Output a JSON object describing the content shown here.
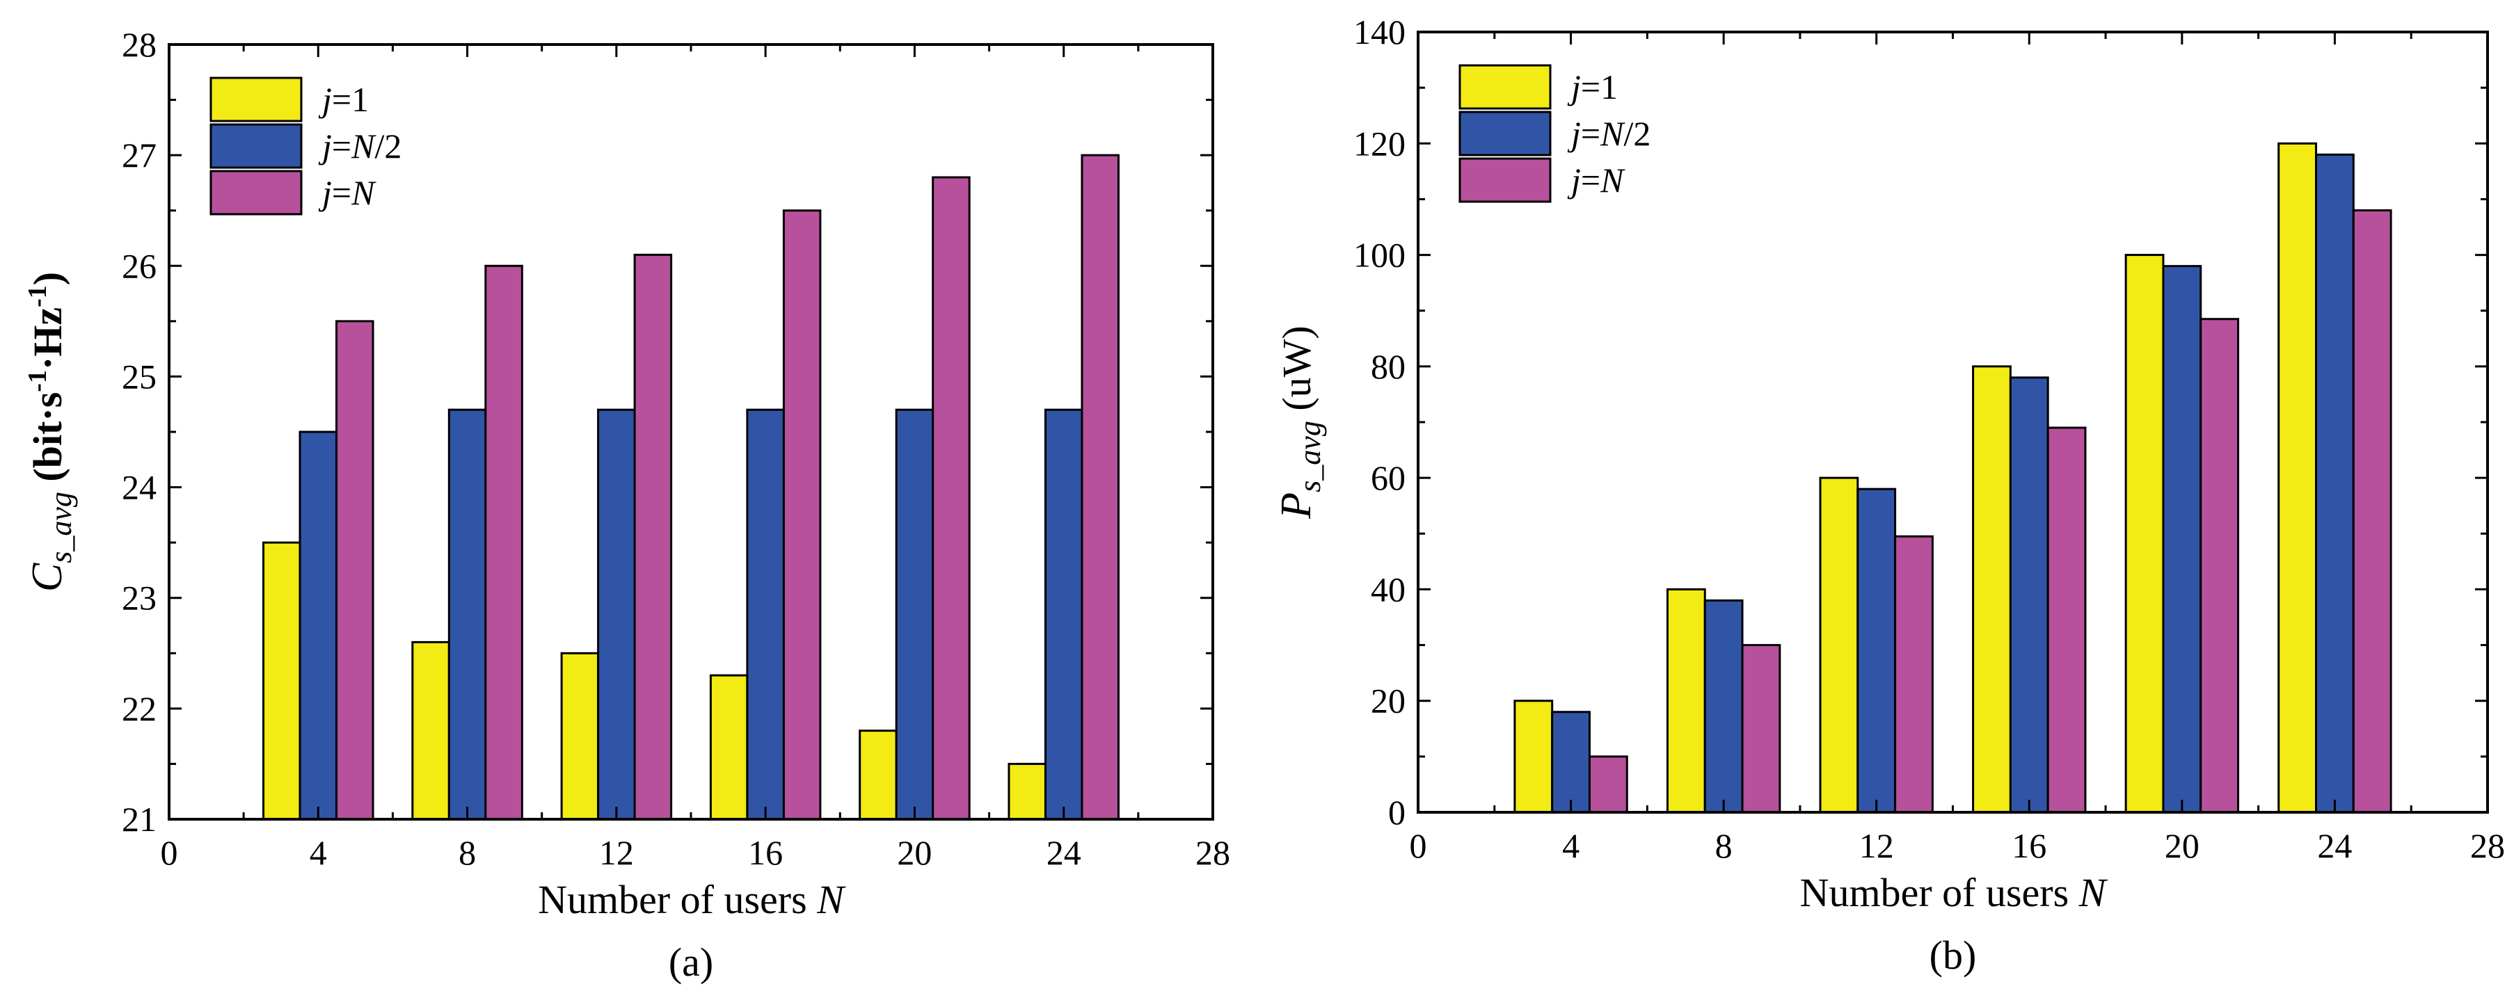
{
  "colors": {
    "series_1": "#f2eb14",
    "series_2": "#3155a6",
    "series_3": "#b8519c",
    "axis": "#000000"
  },
  "chart_data": [
    {
      "type": "bar",
      "panel_label": "(a)",
      "xlabel": {
        "text": "Number of users ",
        "italic": "N"
      },
      "ylabel": {
        "base": "C",
        "sub": "s_avg",
        "unit_pre": " (bit·s",
        "sup1": "-1",
        "unit_mid": "·Hz",
        "sup2": "-1",
        "unit_post": ")"
      },
      "xlim": [
        0,
        28
      ],
      "xticks": [
        0,
        4,
        8,
        12,
        16,
        20,
        24,
        28
      ],
      "ylim": [
        21,
        28
      ],
      "yticks": [
        21,
        22,
        23,
        24,
        25,
        26,
        27,
        28
      ],
      "categories": [
        4,
        8,
        12,
        16,
        20,
        24
      ],
      "legend_position": "top-left",
      "series": [
        {
          "name": "j=1",
          "name_parts": [
            "j",
            "=1"
          ],
          "values": [
            23.5,
            22.6,
            22.5,
            22.3,
            21.8,
            21.5
          ]
        },
        {
          "name": "j=N/2",
          "name_parts": [
            "j",
            "=",
            "N",
            "/2"
          ],
          "values": [
            24.5,
            24.7,
            24.7,
            24.7,
            24.7,
            24.7
          ]
        },
        {
          "name": "j=N",
          "name_parts": [
            "j",
            "=",
            "N"
          ],
          "values": [
            25.5,
            26.0,
            26.1,
            26.5,
            26.8,
            27.0
          ]
        }
      ]
    },
    {
      "type": "bar",
      "panel_label": "(b)",
      "xlabel": {
        "text": "Number of users ",
        "italic": "N"
      },
      "ylabel": {
        "base": "P",
        "sub": "s_avg",
        "unit": " (uW)"
      },
      "xlim": [
        0,
        28
      ],
      "xticks": [
        0,
        4,
        8,
        12,
        16,
        20,
        24,
        28
      ],
      "ylim": [
        0,
        140
      ],
      "yticks": [
        0,
        20,
        40,
        60,
        80,
        100,
        120,
        140
      ],
      "categories": [
        4,
        8,
        12,
        16,
        20,
        24
      ],
      "legend_position": "top-left",
      "series": [
        {
          "name": "j=1",
          "name_parts": [
            "j",
            "=1"
          ],
          "values": [
            20,
            40,
            60,
            80,
            100,
            120
          ]
        },
        {
          "name": "j=N/2",
          "name_parts": [
            "j",
            "=",
            "N",
            "/2"
          ],
          "values": [
            18,
            38,
            58,
            78,
            98,
            118
          ]
        },
        {
          "name": "j=N",
          "name_parts": [
            "j",
            "=",
            "N"
          ],
          "values": [
            10,
            30,
            49.5,
            69,
            88.5,
            108
          ]
        }
      ]
    }
  ]
}
